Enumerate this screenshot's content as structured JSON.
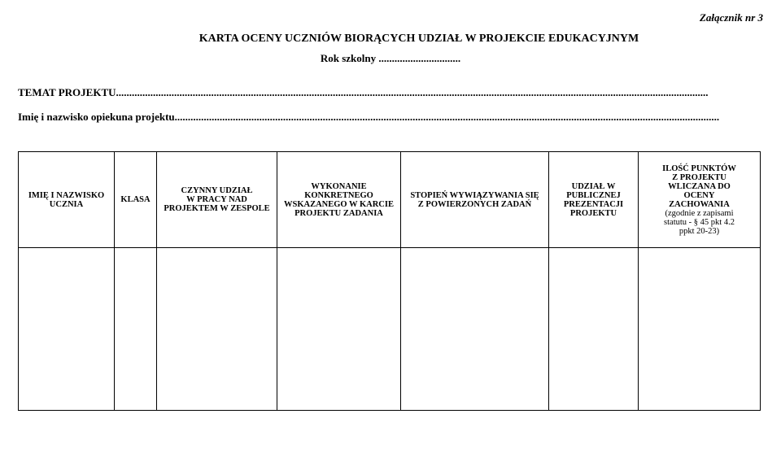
{
  "attachment_label": "Załącznik nr 3",
  "main_title": "KARTA OCENY UCZNIÓW BIORĄCYCH  UDZIAŁ  W  PROJEKCIE  EDUKACYJNYM",
  "school_year_label": "Rok szkolny ...............................",
  "topic_line": "TEMAT PROJEKTU................................................................................................................................................................................................................................",
  "supervisor_line": "Imię i nazwisko opiekuna projektu..............................................................................................................................................................................................................",
  "table": {
    "columns": {
      "name": "IMIĘ I NAZWISKO UCZNIA",
      "class": "KLASA",
      "active": "CZYNNY   UDZIAŁ\nW  PRACY NAD\nPROJEKTEM W ZESPOLE",
      "task": "WYKONANIE\nKONKRETNEGO\nWSKAZANEGO W KARCIE\nPROJEKTU ZADANIA",
      "degree": "STOPIEŃ WYWIĄZYWANIA SIĘ\nZ POWIERZONYCH ZADAŃ",
      "pres": "UDZIAŁ  W\nPUBLICZNEJ\nPREZENTACJI\nPROJEKTU",
      "points_top": "ILOŚĆ PUNKTÓW\nZ PROJEKTU\nWLICZANA DO\nOCENY\nZACHOWANIA",
      "points_note": "(zgodnie z zapisami\nstatutu - § 45 pkt 4.2\nppkt 20-23)"
    },
    "rows": [
      {
        "name": "",
        "class": "",
        "active": "",
        "task": "",
        "degree": "",
        "pres": "",
        "points": ""
      }
    ]
  }
}
